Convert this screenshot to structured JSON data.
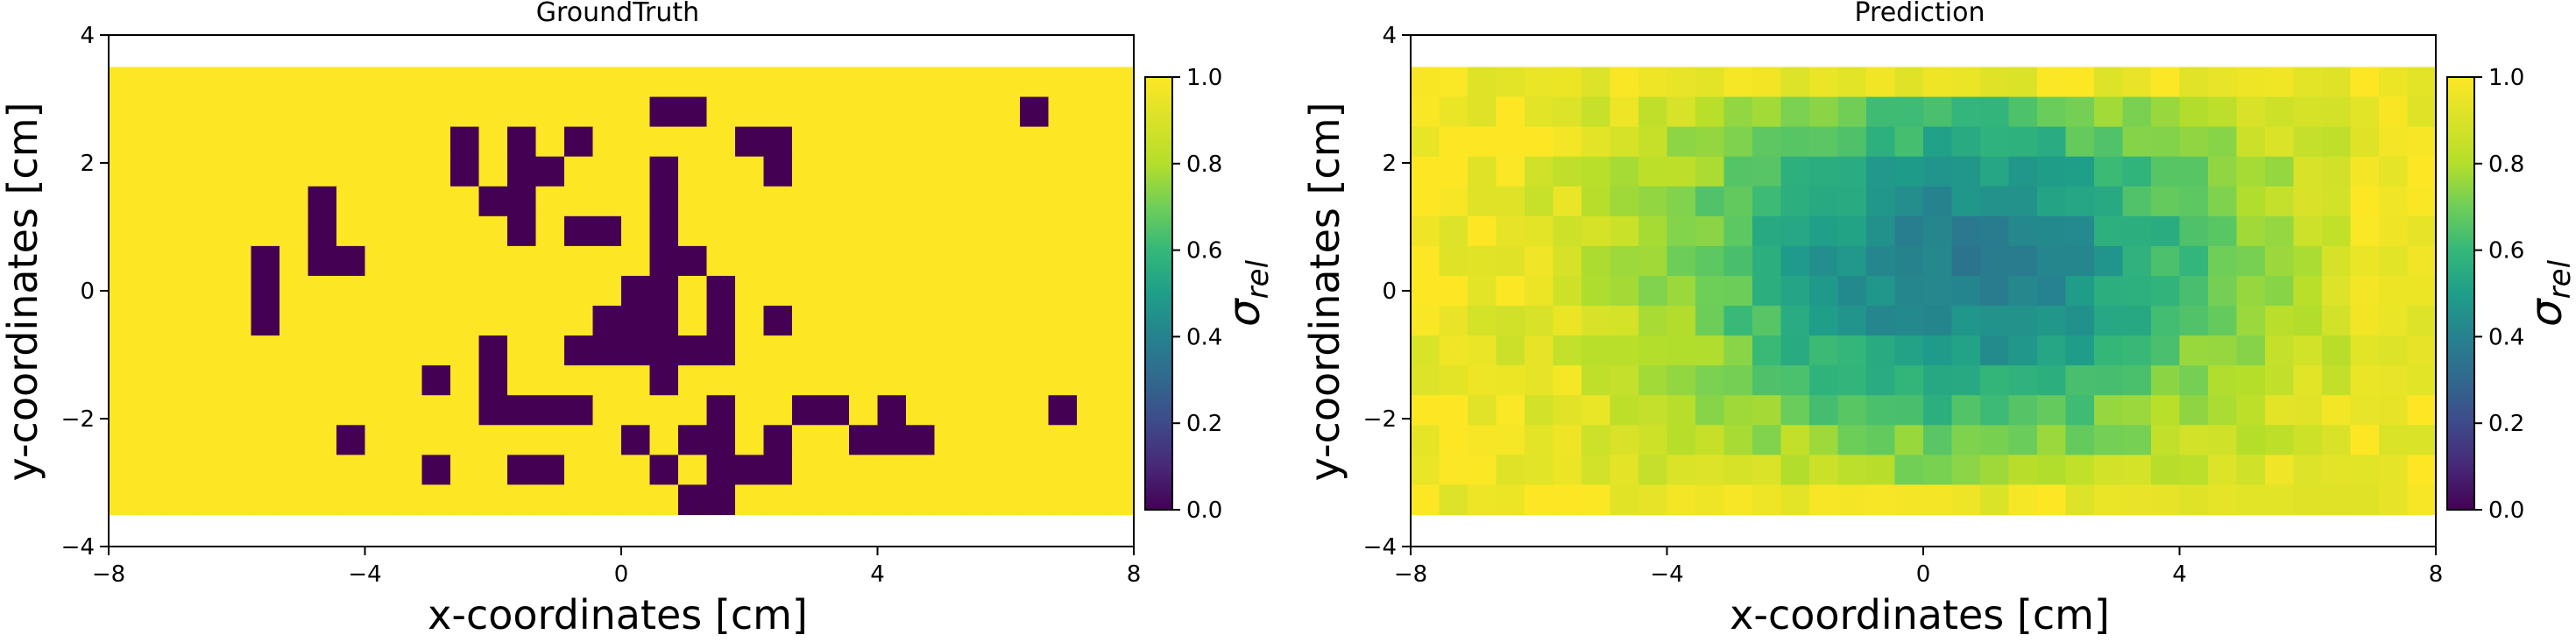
{
  "chart_data": [
    {
      "type": "heatmap",
      "title": "GroundTruth",
      "xlabel": "x-coordinates [cm]",
      "ylabel": "y-coordinates [cm]",
      "xlim": [
        -8,
        8
      ],
      "ylim": [
        -4,
        4
      ],
      "xticks": [
        -8,
        -4,
        0,
        4,
        8
      ],
      "yticks": [
        -4,
        -2,
        0,
        2,
        4
      ],
      "grid": false,
      "x_extent": [
        -8,
        8
      ],
      "y_extent": [
        -3.5,
        3.5
      ],
      "rows_top_to_bottom": [
        "111111111111111111111111111111111111",
        "111111111111111111111111111111111111",
        "111111111111111111111111111111111111",
        "111111111111111111111111111111111111",
        "111111111111111111111111111111111111",
        "111111111111111111111111111111111111",
        "111111111111111111111111111111111111",
        "111111111111111111111111111111111111",
        "111111111111111111111111111111111111",
        "111111111111111111111111111111111111",
        "111111111111111111111111111111111111",
        "111111111111111111111111111111111111",
        "111111111111111111111111111111111111",
        "111111111111111111111111111111111111",
        "111111111111111111111111111111111111"
      ],
      "dark_cells": [
        [
          19,
          1
        ],
        [
          20,
          1
        ],
        [
          32,
          1
        ],
        [
          12,
          2
        ],
        [
          14,
          2
        ],
        [
          16,
          2
        ],
        [
          22,
          2
        ],
        [
          23,
          2
        ],
        [
          12,
          3
        ],
        [
          14,
          3
        ],
        [
          15,
          3
        ],
        [
          19,
          3
        ],
        [
          23,
          3
        ],
        [
          7,
          4
        ],
        [
          13,
          4
        ],
        [
          14,
          4
        ],
        [
          19,
          4
        ],
        [
          7,
          5
        ],
        [
          14,
          5
        ],
        [
          16,
          5
        ],
        [
          17,
          5
        ],
        [
          19,
          5
        ],
        [
          5,
          6
        ],
        [
          7,
          6
        ],
        [
          8,
          6
        ],
        [
          19,
          6
        ],
        [
          20,
          6
        ],
        [
          5,
          7
        ],
        [
          18,
          7
        ],
        [
          19,
          7
        ],
        [
          21,
          7
        ],
        [
          5,
          8
        ],
        [
          17,
          8
        ],
        [
          18,
          8
        ],
        [
          19,
          8
        ],
        [
          21,
          8
        ],
        [
          23,
          8
        ],
        [
          13,
          9
        ],
        [
          16,
          9
        ],
        [
          17,
          9
        ],
        [
          18,
          9
        ],
        [
          19,
          9
        ],
        [
          20,
          9
        ],
        [
          21,
          9
        ],
        [
          11,
          10
        ],
        [
          13,
          10
        ],
        [
          19,
          10
        ],
        [
          13,
          11
        ],
        [
          14,
          11
        ],
        [
          15,
          11
        ],
        [
          16,
          11
        ],
        [
          21,
          11
        ],
        [
          24,
          11
        ],
        [
          25,
          11
        ],
        [
          27,
          11
        ],
        [
          33,
          11
        ],
        [
          8,
          12
        ],
        [
          18,
          12
        ],
        [
          20,
          12
        ],
        [
          21,
          12
        ],
        [
          23,
          12
        ],
        [
          26,
          12
        ],
        [
          27,
          12
        ],
        [
          28,
          12
        ],
        [
          11,
          13
        ],
        [
          14,
          13
        ],
        [
          15,
          13
        ],
        [
          19,
          13
        ],
        [
          21,
          13
        ],
        [
          22,
          13
        ],
        [
          23,
          13
        ],
        [
          20,
          14
        ],
        [
          21,
          14
        ]
      ],
      "colorbar": {
        "label": "σ",
        "label_subscript": "rel",
        "ticks": [
          0.0,
          0.2,
          0.4,
          0.6,
          0.8,
          1.0
        ],
        "tick_labels": [
          "0.0",
          "0.2",
          "0.4",
          "0.6",
          "0.8",
          "1.0"
        ],
        "vmin": 0,
        "vmax": 1,
        "colormap": "viridis"
      }
    },
    {
      "type": "heatmap",
      "title": "Prediction",
      "xlabel": "x-coordinates [cm]",
      "ylabel": "y-coordinates [cm]",
      "xlim": [
        -8,
        8
      ],
      "ylim": [
        -4,
        4
      ],
      "xticks": [
        -8,
        -4,
        0,
        4,
        8
      ],
      "yticks": [
        -4,
        -2,
        0,
        2,
        4
      ],
      "grid": false,
      "x_extent": [
        -8,
        8
      ],
      "y_extent": [
        -3.5,
        3.5
      ],
      "model": {
        "center_x": 0.6,
        "center_y": 0.4,
        "core_min": 0.38,
        "sigma_x": 3.4,
        "sigma_y": 2.3,
        "floor": 1.0
      },
      "colorbar": {
        "label": "σ",
        "label_subscript": "rel",
        "ticks": [
          0.0,
          0.2,
          0.4,
          0.6,
          0.8,
          1.0
        ],
        "tick_labels": [
          "0.0",
          "0.2",
          "0.4",
          "0.6",
          "0.8",
          "1.0"
        ],
        "vmin": 0,
        "vmax": 1,
        "colormap": "viridis"
      }
    }
  ]
}
